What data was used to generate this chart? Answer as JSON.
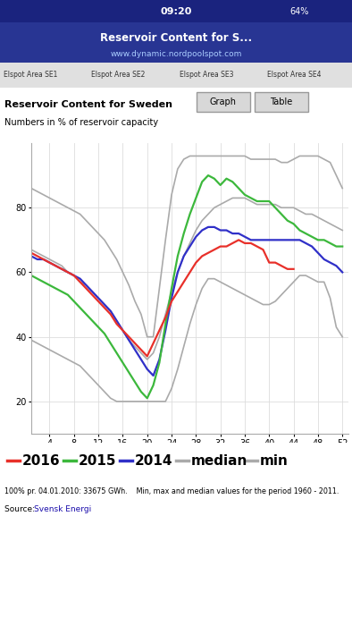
{
  "title": "Reservoir Content for Sweden",
  "subtitle": "Numbers in % of reservoir capacity",
  "footnote": "100% pr. 04.01.2010: 33675 GWh.    Min, max and median values for the period 1960 - 2011.",
  "source_label": "Source: ",
  "source_link": "Svensk Energi",
  "x_ticks": [
    4,
    8,
    12,
    16,
    20,
    24,
    28,
    32,
    36,
    40,
    44,
    48,
    52
  ],
  "xlim": [
    1,
    53
  ],
  "ylim": [
    10,
    100
  ],
  "y_ticks": [
    20,
    40,
    60,
    80
  ],
  "weeks": [
    1,
    2,
    3,
    4,
    5,
    6,
    7,
    8,
    9,
    10,
    11,
    12,
    13,
    14,
    15,
    16,
    17,
    18,
    19,
    20,
    21,
    22,
    23,
    24,
    25,
    26,
    27,
    28,
    29,
    30,
    31,
    32,
    33,
    34,
    35,
    36,
    37,
    38,
    39,
    40,
    41,
    42,
    43,
    44,
    45,
    46,
    47,
    48,
    49,
    50,
    51,
    52
  ],
  "series_2016": [
    66,
    65,
    64,
    63,
    62,
    61,
    60,
    59,
    57,
    55,
    53,
    51,
    49,
    47,
    44,
    42,
    40,
    38,
    36,
    34,
    38,
    42,
    46,
    51,
    54,
    57,
    60,
    63,
    65,
    66,
    67,
    68,
    68,
    69,
    70,
    69,
    69,
    68,
    67,
    63,
    63,
    62,
    61,
    61,
    null,
    null,
    null,
    null,
    null,
    null,
    null,
    null
  ],
  "series_2015": [
    59,
    58,
    57,
    56,
    55,
    54,
    53,
    51,
    49,
    47,
    45,
    43,
    41,
    38,
    35,
    32,
    29,
    26,
    23,
    21,
    25,
    32,
    44,
    55,
    65,
    72,
    78,
    83,
    88,
    90,
    89,
    87,
    89,
    88,
    86,
    84,
    83,
    82,
    82,
    82,
    80,
    78,
    76,
    75,
    73,
    72,
    71,
    70,
    70,
    69,
    68,
    68
  ],
  "series_2014": [
    65,
    64,
    64,
    63,
    62,
    61,
    60,
    59,
    58,
    56,
    54,
    52,
    50,
    48,
    45,
    42,
    39,
    36,
    33,
    30,
    28,
    33,
    42,
    52,
    60,
    65,
    68,
    71,
    73,
    74,
    74,
    73,
    73,
    72,
    72,
    71,
    70,
    70,
    70,
    70,
    70,
    70,
    70,
    70,
    70,
    69,
    68,
    66,
    64,
    63,
    62,
    60
  ],
  "series_median": [
    67,
    66,
    65,
    64,
    63,
    62,
    60,
    59,
    57,
    56,
    54,
    52,
    50,
    48,
    45,
    42,
    39,
    37,
    35,
    33,
    35,
    40,
    47,
    54,
    60,
    65,
    69,
    73,
    76,
    78,
    80,
    81,
    82,
    83,
    83,
    83,
    82,
    81,
    81,
    81,
    81,
    80,
    80,
    80,
    79,
    78,
    78,
    77,
    76,
    75,
    74,
    73
  ],
  "series_max": [
    86,
    85,
    84,
    83,
    82,
    81,
    80,
    79,
    78,
    76,
    74,
    72,
    70,
    67,
    64,
    60,
    56,
    51,
    47,
    40,
    40,
    55,
    70,
    84,
    92,
    95,
    96,
    96,
    96,
    96,
    96,
    96,
    96,
    96,
    96,
    96,
    95,
    95,
    95,
    95,
    95,
    94,
    94,
    95,
    96,
    96,
    96,
    96,
    95,
    94,
    90,
    86
  ],
  "series_min": [
    39,
    38,
    37,
    36,
    35,
    34,
    33,
    32,
    31,
    29,
    27,
    25,
    23,
    21,
    20,
    20,
    20,
    20,
    20,
    20,
    20,
    20,
    20,
    24,
    30,
    37,
    44,
    50,
    55,
    58,
    58,
    57,
    56,
    55,
    54,
    53,
    52,
    51,
    50,
    50,
    51,
    53,
    55,
    57,
    59,
    59,
    58,
    57,
    57,
    52,
    43,
    40
  ],
  "color_2016": "#e8302a",
  "color_2015": "#3cb83c",
  "color_2014": "#3030c8",
  "color_median": "#aaaaaa",
  "color_max": "#aaaaaa",
  "color_min": "#aaaaaa",
  "bg_color": "#ffffff",
  "grid_color": "#dddddd",
  "phone_bg": "#f0f0f0",
  "tab_bg": "#e0e0e0",
  "btn_bg": "#d8d8d8",
  "status_time": "09:20",
  "status_battery": "64%",
  "nav_title": "Reservoir Content for S...",
  "nav_url": "www.dynamic.nordpoolspot.com",
  "tab_labels": [
    "Elspot Area SE1",
    "Elspot Area SE2",
    "Elspot Area SE3",
    "Elspot Area SE4"
  ],
  "btn_graph": "Graph",
  "btn_table": "Table"
}
